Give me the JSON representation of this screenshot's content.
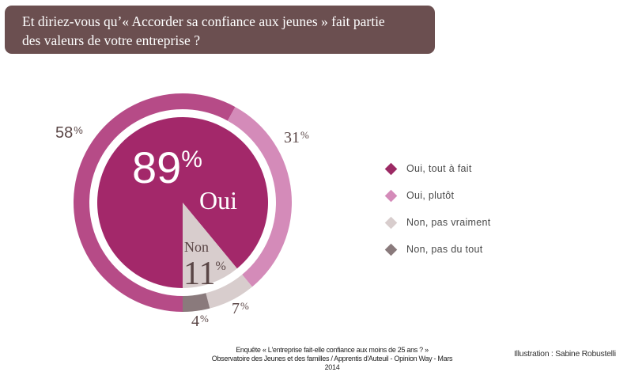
{
  "question": {
    "line1": "Et diriez-vous qu’« Accorder sa confiance aux jeunes » fait partie",
    "line2": "des valeurs de votre entreprise ?"
  },
  "chart_data": {
    "type": "pie",
    "title": "Et diriez-vous qu’« Accorder sa confiance aux jeunes » fait partie des valeurs de votre entreprise ?",
    "inner_pie": {
      "categories": [
        "Oui",
        "Non"
      ],
      "values": [
        89,
        11
      ],
      "colors": [
        "#a3286a",
        "#d8cdcd"
      ]
    },
    "outer_ring": {
      "categories": [
        "Oui, tout à fait",
        "Oui, plutôt",
        "Non, pas vraiment",
        "Non, pas du tout"
      ],
      "values": [
        58,
        31,
        7,
        4
      ],
      "colors": [
        "#b64b87",
        "#d48bb9",
        "#d8cdcd",
        "#8a7a7c"
      ]
    },
    "legend_position": "right"
  },
  "labels": {
    "outer": {
      "tout_a_fait": {
        "num": "58",
        "sym": "%"
      },
      "plutot": {
        "num": "31",
        "sym": "%"
      },
      "pas_vraiment": {
        "num": "7",
        "sym": "%"
      },
      "pas_du_tout": {
        "num": "4",
        "sym": "%"
      }
    },
    "oui_pct": {
      "num": "89",
      "sym": "%"
    },
    "oui_label": "Oui",
    "non_label": "Non",
    "non_pct": {
      "num": "11",
      "sym": "%"
    }
  },
  "legend": {
    "items": [
      {
        "label": "Oui, tout à fait",
        "color": "#9c2a64"
      },
      {
        "label": "Oui, plutôt",
        "color": "#d48bb9"
      },
      {
        "label": "Non, pas vraiment",
        "color": "#d8cdcd"
      },
      {
        "label": "Non, pas du tout",
        "color": "#8a7a7c"
      }
    ]
  },
  "footer": {
    "line1": "Enquête « L'entreprise fait-elle confiance aux moins de 25 ans ? »",
    "line2": "Observatoire des Jeunes et des familles / Apprentis d'Auteuil - Opinion Way - Mars 2014",
    "credit": "Illustration : Sabine Robustelli"
  }
}
